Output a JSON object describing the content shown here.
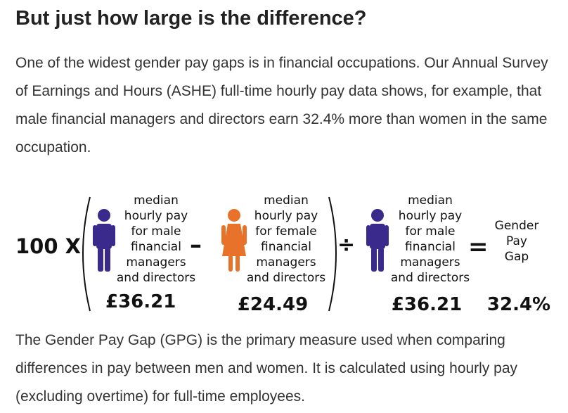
{
  "heading": "But just how large is the difference?",
  "intro": "One of the widest gender pay gaps is in financial occupations. Our Annual Survey of Earnings and Hours (ASHE) full-time hourly pay data shows, for example, that male financial managers and directors earn 32.4% more than women in the same occupation.",
  "formula": {
    "multiplier": "100 X",
    "minus": "–",
    "divide": "÷",
    "equals": "=",
    "term_male_1": {
      "lines": [
        "median",
        "hourly pay",
        "for male",
        "financial",
        "managers",
        "and directors"
      ],
      "value": "£36.21",
      "icon": "male-person-icon",
      "color": "#3a2a8c"
    },
    "term_female": {
      "lines": [
        "median",
        "hourly pay",
        "for female",
        "financial",
        "managers",
        "and directors"
      ],
      "value": "£24.49",
      "icon": "female-person-icon",
      "color": "#e8722a"
    },
    "term_male_2": {
      "lines": [
        "median",
        "hourly pay",
        "for male",
        "financial",
        "managers",
        "and directors"
      ],
      "value": "£36.21",
      "icon": "male-person-icon",
      "color": "#3a2a8c"
    },
    "result": {
      "lines": [
        "Gender",
        "Pay",
        "Gap"
      ],
      "value": "32.4%"
    }
  },
  "outro": "The Gender Pay Gap (GPG) is the primary measure used when comparing differences in pay between men and women. It is calculated using hourly pay (excluding overtime) for full-time employees."
}
